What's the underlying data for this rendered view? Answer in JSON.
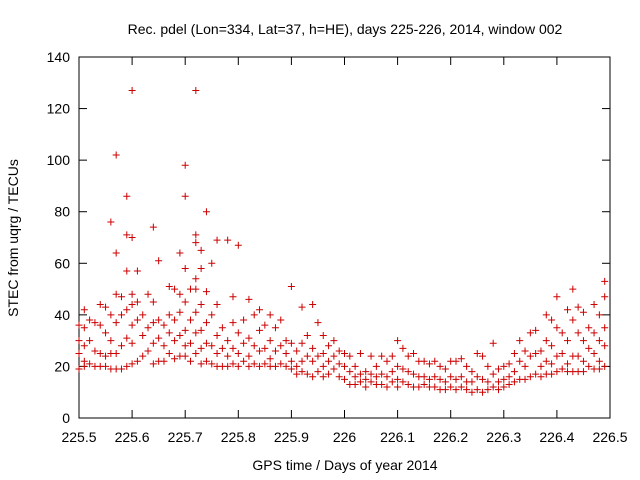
{
  "chart_data": {
    "type": "scatter",
    "title": "Rec. pdel (Lon=334, Lat=37, h=HE), days 225-226, 2014, window 002",
    "xlabel": "GPS time / Days of year 2014",
    "ylabel": "STEC from uqrg / TECUs",
    "xlim": [
      225.5,
      226.5
    ],
    "ylim": [
      0,
      140
    ],
    "xticks": [
      225.5,
      225.6,
      225.7,
      225.8,
      225.9,
      226,
      226.1,
      226.2,
      226.3,
      226.4,
      226.5
    ],
    "xtick_labels": [
      "225.5",
      "225.6",
      "225.7",
      "225.8",
      "225.9",
      "226",
      "226.1",
      "226.2",
      "226.3",
      "226.4",
      "226.5"
    ],
    "yticks": [
      0,
      20,
      40,
      60,
      80,
      100,
      120,
      140
    ],
    "ytick_labels": [
      "0",
      "20",
      "40",
      "60",
      "80",
      "100",
      "120",
      "140"
    ],
    "marker": "+",
    "color": "#cc0000",
    "grid": false,
    "legend": "none",
    "points": [
      [
        225.5,
        36
      ],
      [
        225.5,
        30
      ],
      [
        225.5,
        25
      ],
      [
        225.5,
        19
      ],
      [
        225.51,
        42
      ],
      [
        225.51,
        35
      ],
      [
        225.51,
        28
      ],
      [
        225.51,
        22
      ],
      [
        225.51,
        20
      ],
      [
        225.52,
        38
      ],
      [
        225.52,
        30
      ],
      [
        225.52,
        21
      ],
      [
        225.53,
        37
      ],
      [
        225.53,
        26
      ],
      [
        225.53,
        20
      ],
      [
        225.54,
        44
      ],
      [
        225.54,
        36
      ],
      [
        225.54,
        25
      ],
      [
        225.54,
        20
      ],
      [
        225.55,
        43
      ],
      [
        225.55,
        33
      ],
      [
        225.55,
        24
      ],
      [
        225.55,
        20
      ],
      [
        225.56,
        76
      ],
      [
        225.56,
        40
      ],
      [
        225.56,
        30
      ],
      [
        225.56,
        25
      ],
      [
        225.56,
        19
      ],
      [
        225.57,
        102
      ],
      [
        225.57,
        64
      ],
      [
        225.57,
        48
      ],
      [
        225.57,
        37
      ],
      [
        225.57,
        25
      ],
      [
        225.57,
        19
      ],
      [
        225.58,
        47
      ],
      [
        225.58,
        40
      ],
      [
        225.58,
        28
      ],
      [
        225.58,
        19
      ],
      [
        225.59,
        86
      ],
      [
        225.59,
        71
      ],
      [
        225.59,
        57
      ],
      [
        225.59,
        42
      ],
      [
        225.59,
        31
      ],
      [
        225.59,
        20
      ],
      [
        225.6,
        127
      ],
      [
        225.6,
        70
      ],
      [
        225.6,
        48
      ],
      [
        225.6,
        44
      ],
      [
        225.6,
        36
      ],
      [
        225.6,
        29
      ],
      [
        225.6,
        21
      ],
      [
        225.61,
        57
      ],
      [
        225.61,
        45
      ],
      [
        225.61,
        38
      ],
      [
        225.61,
        22
      ],
      [
        225.62,
        40
      ],
      [
        225.62,
        32
      ],
      [
        225.62,
        24
      ],
      [
        225.63,
        48
      ],
      [
        225.63,
        35
      ],
      [
        225.63,
        26
      ],
      [
        225.64,
        74
      ],
      [
        225.64,
        45
      ],
      [
        225.64,
        37
      ],
      [
        225.64,
        29
      ],
      [
        225.64,
        21
      ],
      [
        225.65,
        61
      ],
      [
        225.65,
        38
      ],
      [
        225.65,
        31
      ],
      [
        225.65,
        22
      ],
      [
        225.66,
        36
      ],
      [
        225.66,
        28
      ],
      [
        225.66,
        22
      ],
      [
        225.67,
        51
      ],
      [
        225.67,
        40
      ],
      [
        225.67,
        33
      ],
      [
        225.67,
        25
      ],
      [
        225.68,
        50
      ],
      [
        225.68,
        38
      ],
      [
        225.68,
        30
      ],
      [
        225.68,
        23
      ],
      [
        225.69,
        64
      ],
      [
        225.69,
        48
      ],
      [
        225.69,
        41
      ],
      [
        225.69,
        32
      ],
      [
        225.69,
        24
      ],
      [
        225.7,
        98
      ],
      [
        225.7,
        86
      ],
      [
        225.7,
        58
      ],
      [
        225.7,
        45
      ],
      [
        225.7,
        34
      ],
      [
        225.7,
        28
      ],
      [
        225.7,
        24
      ],
      [
        225.71,
        50
      ],
      [
        225.71,
        38
      ],
      [
        225.71,
        29
      ],
      [
        225.71,
        22
      ],
      [
        225.72,
        127
      ],
      [
        225.72,
        71
      ],
      [
        225.72,
        68
      ],
      [
        225.72,
        54
      ],
      [
        225.72,
        50
      ],
      [
        225.72,
        41
      ],
      [
        225.72,
        33
      ],
      [
        225.72,
        25
      ],
      [
        225.73,
        65
      ],
      [
        225.73,
        58
      ],
      [
        225.73,
        44
      ],
      [
        225.73,
        34
      ],
      [
        225.73,
        27
      ],
      [
        225.73,
        21
      ],
      [
        225.74,
        80
      ],
      [
        225.74,
        49
      ],
      [
        225.74,
        37
      ],
      [
        225.74,
        29
      ],
      [
        225.74,
        22
      ],
      [
        225.75,
        60
      ],
      [
        225.75,
        40
      ],
      [
        225.75,
        28
      ],
      [
        225.75,
        21
      ],
      [
        225.76,
        69
      ],
      [
        225.76,
        44
      ],
      [
        225.76,
        32
      ],
      [
        225.76,
        25
      ],
      [
        225.76,
        20
      ],
      [
        225.77,
        35
      ],
      [
        225.77,
        27
      ],
      [
        225.77,
        20
      ],
      [
        225.78,
        69
      ],
      [
        225.78,
        30
      ],
      [
        225.78,
        24
      ],
      [
        225.78,
        20
      ],
      [
        225.79,
        47
      ],
      [
        225.79,
        37
      ],
      [
        225.79,
        27
      ],
      [
        225.79,
        21
      ],
      [
        225.8,
        67
      ],
      [
        225.8,
        33
      ],
      [
        225.8,
        25
      ],
      [
        225.8,
        20
      ],
      [
        225.81,
        38
      ],
      [
        225.81,
        29
      ],
      [
        225.81,
        22
      ],
      [
        225.82,
        46
      ],
      [
        225.82,
        31
      ],
      [
        225.82,
        24
      ],
      [
        225.82,
        20
      ],
      [
        225.83,
        40
      ],
      [
        225.83,
        28
      ],
      [
        225.83,
        21
      ],
      [
        225.84,
        42
      ],
      [
        225.84,
        34
      ],
      [
        225.84,
        26
      ],
      [
        225.84,
        20
      ],
      [
        225.85,
        36
      ],
      [
        225.85,
        27
      ],
      [
        225.85,
        21
      ],
      [
        225.86,
        40
      ],
      [
        225.86,
        30
      ],
      [
        225.86,
        23
      ],
      [
        225.86,
        20
      ],
      [
        225.87,
        35
      ],
      [
        225.87,
        26
      ],
      [
        225.87,
        20
      ],
      [
        225.88,
        38
      ],
      [
        225.88,
        28
      ],
      [
        225.88,
        21
      ],
      [
        225.89,
        30
      ],
      [
        225.89,
        25
      ],
      [
        225.89,
        20
      ],
      [
        225.9,
        51
      ],
      [
        225.9,
        29
      ],
      [
        225.9,
        22
      ],
      [
        225.9,
        19
      ],
      [
        225.91,
        26
      ],
      [
        225.91,
        20
      ],
      [
        225.91,
        17
      ],
      [
        225.92,
        43
      ],
      [
        225.92,
        29
      ],
      [
        225.92,
        22
      ],
      [
        225.92,
        18
      ],
      [
        225.93,
        32
      ],
      [
        225.93,
        24
      ],
      [
        225.93,
        17
      ],
      [
        225.94,
        44
      ],
      [
        225.94,
        27
      ],
      [
        225.94,
        22
      ],
      [
        225.94,
        16
      ],
      [
        225.95,
        37
      ],
      [
        225.95,
        24
      ],
      [
        225.95,
        18
      ],
      [
        225.96,
        32
      ],
      [
        225.96,
        25
      ],
      [
        225.96,
        20
      ],
      [
        225.96,
        16
      ],
      [
        225.97,
        28
      ],
      [
        225.97,
        22
      ],
      [
        225.97,
        17
      ],
      [
        225.98,
        30
      ],
      [
        225.98,
        24
      ],
      [
        225.98,
        19
      ],
      [
        225.99,
        26
      ],
      [
        225.99,
        21
      ],
      [
        225.99,
        16
      ],
      [
        226.0,
        25
      ],
      [
        226.0,
        20
      ],
      [
        226.0,
        15
      ],
      [
        226.01,
        24
      ],
      [
        226.01,
        18
      ],
      [
        226.01,
        13
      ],
      [
        226.02,
        20
      ],
      [
        226.02,
        16
      ],
      [
        226.02,
        13
      ],
      [
        226.03,
        25
      ],
      [
        226.03,
        17
      ],
      [
        226.03,
        14
      ],
      [
        226.04,
        18
      ],
      [
        226.04,
        15
      ],
      [
        226.04,
        12
      ],
      [
        226.05,
        24
      ],
      [
        226.05,
        17
      ],
      [
        226.05,
        14
      ],
      [
        226.06,
        20
      ],
      [
        226.06,
        16
      ],
      [
        226.06,
        13
      ],
      [
        226.07,
        24
      ],
      [
        226.07,
        17
      ],
      [
        226.07,
        13
      ],
      [
        226.08,
        22
      ],
      [
        226.08,
        16
      ],
      [
        226.08,
        12
      ],
      [
        226.09,
        24
      ],
      [
        226.09,
        18
      ],
      [
        226.09,
        14
      ],
      [
        226.1,
        30
      ],
      [
        226.1,
        20
      ],
      [
        226.1,
        15
      ],
      [
        226.1,
        12
      ],
      [
        226.11,
        27
      ],
      [
        226.11,
        19
      ],
      [
        226.11,
        14
      ],
      [
        226.12,
        24
      ],
      [
        226.12,
        18
      ],
      [
        226.12,
        13
      ],
      [
        226.13,
        25
      ],
      [
        226.13,
        17
      ],
      [
        226.13,
        12
      ],
      [
        226.14,
        22
      ],
      [
        226.14,
        16
      ],
      [
        226.14,
        12
      ],
      [
        226.15,
        22
      ],
      [
        226.15,
        16
      ],
      [
        226.15,
        13
      ],
      [
        226.16,
        21
      ],
      [
        226.16,
        15
      ],
      [
        226.16,
        12
      ],
      [
        226.17,
        22
      ],
      [
        226.17,
        16
      ],
      [
        226.17,
        12
      ],
      [
        226.18,
        20
      ],
      [
        226.18,
        15
      ],
      [
        226.18,
        11
      ],
      [
        226.19,
        19
      ],
      [
        226.19,
        14
      ],
      [
        226.19,
        11
      ],
      [
        226.2,
        22
      ],
      [
        226.2,
        16
      ],
      [
        226.2,
        12
      ],
      [
        226.21,
        22
      ],
      [
        226.21,
        15
      ],
      [
        226.21,
        11
      ],
      [
        226.22,
        23
      ],
      [
        226.22,
        16
      ],
      [
        226.22,
        12
      ],
      [
        226.23,
        20
      ],
      [
        226.23,
        14
      ],
      [
        226.23,
        11
      ],
      [
        226.24,
        18
      ],
      [
        226.24,
        14
      ],
      [
        226.24,
        10
      ],
      [
        226.25,
        25
      ],
      [
        226.25,
        16
      ],
      [
        226.25,
        11
      ],
      [
        226.26,
        24
      ],
      [
        226.26,
        15
      ],
      [
        226.26,
        10
      ],
      [
        226.27,
        20
      ],
      [
        226.27,
        14
      ],
      [
        226.27,
        11
      ],
      [
        226.28,
        29
      ],
      [
        226.28,
        17
      ],
      [
        226.28,
        12
      ],
      [
        226.29,
        19
      ],
      [
        226.29,
        14
      ],
      [
        226.29,
        11
      ],
      [
        226.3,
        20
      ],
      [
        226.3,
        15
      ],
      [
        226.3,
        12
      ],
      [
        226.31,
        21
      ],
      [
        226.31,
        16
      ],
      [
        226.31,
        13
      ],
      [
        226.32,
        25
      ],
      [
        226.32,
        18
      ],
      [
        226.32,
        14
      ],
      [
        226.33,
        30
      ],
      [
        226.33,
        22
      ],
      [
        226.33,
        15
      ],
      [
        226.34,
        26
      ],
      [
        226.34,
        20
      ],
      [
        226.34,
        15
      ],
      [
        226.35,
        33
      ],
      [
        226.35,
        24
      ],
      [
        226.35,
        16
      ],
      [
        226.36,
        34
      ],
      [
        226.36,
        25
      ],
      [
        226.36,
        17
      ],
      [
        226.37,
        26
      ],
      [
        226.37,
        20
      ],
      [
        226.37,
        16
      ],
      [
        226.38,
        40
      ],
      [
        226.38,
        30
      ],
      [
        226.38,
        22
      ],
      [
        226.38,
        17
      ],
      [
        226.39,
        38
      ],
      [
        226.39,
        28
      ],
      [
        226.39,
        21
      ],
      [
        226.39,
        17
      ],
      [
        226.4,
        47
      ],
      [
        226.4,
        35
      ],
      [
        226.4,
        24
      ],
      [
        226.4,
        18
      ],
      [
        226.41,
        33
      ],
      [
        226.41,
        25
      ],
      [
        226.41,
        19
      ],
      [
        226.42,
        42
      ],
      [
        226.42,
        30
      ],
      [
        226.42,
        21
      ],
      [
        226.42,
        18
      ],
      [
        226.43,
        50
      ],
      [
        226.43,
        38
      ],
      [
        226.43,
        24
      ],
      [
        226.43,
        18
      ],
      [
        226.44,
        43
      ],
      [
        226.44,
        33
      ],
      [
        226.44,
        24
      ],
      [
        226.44,
        18
      ],
      [
        226.45,
        41
      ],
      [
        226.45,
        30
      ],
      [
        226.45,
        22
      ],
      [
        226.45,
        18
      ],
      [
        226.46,
        35
      ],
      [
        226.46,
        27
      ],
      [
        226.46,
        20
      ],
      [
        226.47,
        44
      ],
      [
        226.47,
        33
      ],
      [
        226.47,
        25
      ],
      [
        226.47,
        19
      ],
      [
        226.48,
        40
      ],
      [
        226.48,
        30
      ],
      [
        226.48,
        22
      ],
      [
        226.48,
        19
      ],
      [
        226.49,
        53
      ],
      [
        226.49,
        47
      ],
      [
        226.49,
        35
      ],
      [
        226.49,
        28
      ],
      [
        226.49,
        20
      ]
    ]
  }
}
